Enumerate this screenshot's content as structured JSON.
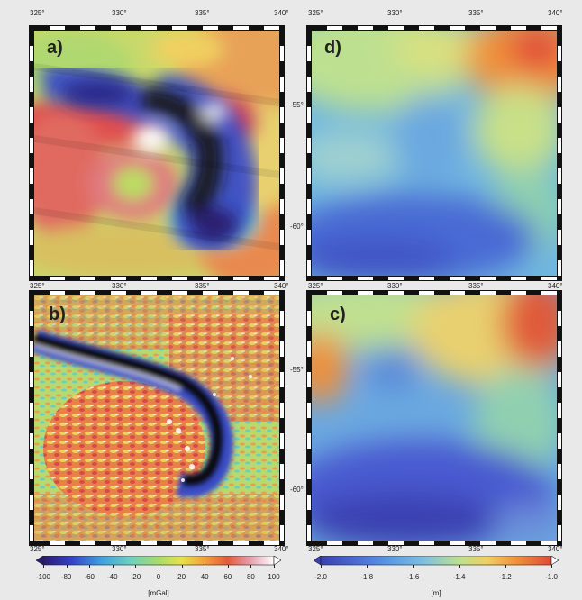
{
  "chart_data": [
    {
      "type": "heatmap",
      "panel": "a)",
      "x_ticks": [
        "325°",
        "330°",
        "335°",
        "340°"
      ],
      "y_ticks_left": [
        "",
        ""
      ],
      "xlim": [
        325,
        340
      ],
      "description_values": "gravity anomaly, mGal"
    },
    {
      "type": "heatmap",
      "panel": "b)",
      "x_ticks_top": [
        "325°",
        "330°",
        "335°",
        "340°"
      ],
      "x_ticks_bottom": [
        "325°",
        "330°",
        "335°",
        "340°"
      ],
      "y_ticks_left": [
        "",
        ""
      ],
      "xlim": [
        325,
        340
      ]
    },
    {
      "type": "heatmap",
      "panel": "d)",
      "x_ticks": [
        "325°",
        "330°",
        "335°",
        "340°"
      ],
      "y_ticks_left": [
        "-55°",
        "-60°"
      ],
      "xlim": [
        325,
        340
      ]
    },
    {
      "type": "heatmap",
      "panel": "c)",
      "x_ticks_top": [
        "325°",
        "330°",
        "335°",
        "340°"
      ],
      "x_ticks_bottom": [
        "325°",
        "330°",
        "335°",
        "340°"
      ],
      "y_ticks_left": [
        "-55°",
        "-60°"
      ],
      "xlim": [
        325,
        340
      ]
    }
  ],
  "colorbars": [
    {
      "unit": "[mGal]",
      "ticks": [
        "-100",
        "-80",
        "-60",
        "-40",
        "-20",
        "0",
        "20",
        "40",
        "60",
        "80",
        "100"
      ],
      "range": [
        -100,
        100
      ]
    },
    {
      "unit": "[m]",
      "ticks": [
        "-2.0",
        "-1.8",
        "-1.6",
        "-1.4",
        "-1.2",
        "-1.0"
      ],
      "range": [
        -2.0,
        -1.0
      ]
    }
  ],
  "labels": {
    "a": "a)",
    "b": "b)",
    "c": "c)",
    "d": "d)"
  },
  "colors": {
    "gravity_scale": [
      "#2b1a6e",
      "#3340c8",
      "#3f9fe0",
      "#6fd0c0",
      "#a8dc6a",
      "#e7e24a",
      "#f3a03a",
      "#e35a3a",
      "#d8505c",
      "#e7a0b0",
      "#ffffff"
    ],
    "geoid_scale": [
      "#3a3fb0",
      "#4a6ad4",
      "#5a9ae6",
      "#7fc0e0",
      "#bde090",
      "#f0d060",
      "#f0903a",
      "#e04a3a"
    ]
  }
}
